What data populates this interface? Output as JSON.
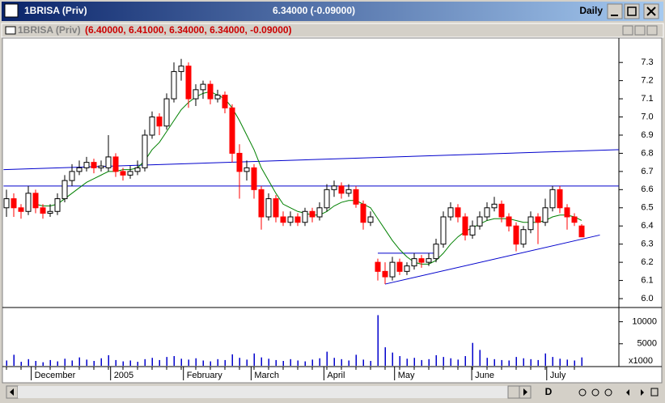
{
  "window": {
    "title": "1BRISA (Priv)",
    "quote": "6.34000 (-0.09000)",
    "period": "Daily"
  },
  "panel": {
    "name": "1BRISA (Priv)",
    "ohlc_text": "(6.40000, 6.41000, 6.34000, 6.34000, -0.09000)"
  },
  "toolbar": {
    "button": "D"
  },
  "chart_data": {
    "type": "candlestick",
    "ohlc": [
      [
        6.5,
        6.6,
        6.45,
        6.55
      ],
      [
        6.55,
        6.58,
        6.45,
        6.5
      ],
      [
        6.5,
        6.52,
        6.44,
        6.48
      ],
      [
        6.48,
        6.62,
        6.46,
        6.58
      ],
      [
        6.58,
        6.6,
        6.47,
        6.5
      ],
      [
        6.5,
        6.52,
        6.44,
        6.47
      ],
      [
        6.47,
        6.52,
        6.45,
        6.48
      ],
      [
        6.48,
        6.58,
        6.46,
        6.55
      ],
      [
        6.55,
        6.68,
        6.53,
        6.65
      ],
      [
        6.65,
        6.74,
        6.62,
        6.7
      ],
      [
        6.7,
        6.76,
        6.68,
        6.72
      ],
      [
        6.72,
        6.78,
        6.7,
        6.75
      ],
      [
        6.75,
        6.77,
        6.69,
        6.72
      ],
      [
        6.72,
        6.76,
        6.7,
        6.73
      ],
      [
        6.72,
        6.9,
        6.7,
        6.78
      ],
      [
        6.78,
        6.8,
        6.67,
        6.7
      ],
      [
        6.7,
        6.72,
        6.65,
        6.68
      ],
      [
        6.68,
        6.73,
        6.66,
        6.7
      ],
      [
        6.7,
        6.76,
        6.68,
        6.72
      ],
      [
        6.72,
        6.93,
        6.7,
        6.9
      ],
      [
        6.9,
        7.03,
        6.88,
        7.0
      ],
      [
        7.0,
        7.02,
        6.9,
        6.95
      ],
      [
        6.95,
        7.13,
        6.93,
        7.1
      ],
      [
        7.1,
        7.3,
        7.08,
        7.25
      ],
      [
        7.25,
        7.32,
        7.2,
        7.28
      ],
      [
        7.28,
        7.3,
        7.05,
        7.1
      ],
      [
        7.1,
        7.18,
        7.06,
        7.15
      ],
      [
        7.15,
        7.2,
        7.1,
        7.18
      ],
      [
        7.18,
        7.2,
        7.07,
        7.1
      ],
      [
        7.1,
        7.15,
        7.08,
        7.12
      ],
      [
        7.12,
        7.14,
        7.02,
        7.05
      ],
      [
        7.05,
        7.07,
        6.75,
        6.8
      ],
      [
        6.8,
        6.85,
        6.55,
        6.7
      ],
      [
        6.7,
        6.76,
        6.65,
        6.72
      ],
      [
        6.72,
        6.74,
        6.55,
        6.6
      ],
      [
        6.6,
        6.62,
        6.38,
        6.45
      ],
      [
        6.45,
        6.58,
        6.43,
        6.55
      ],
      [
        6.55,
        6.57,
        6.42,
        6.45
      ],
      [
        6.45,
        6.48,
        6.4,
        6.42
      ],
      [
        6.42,
        6.48,
        6.4,
        6.45
      ],
      [
        6.45,
        6.47,
        6.4,
        6.42
      ],
      [
        6.42,
        6.5,
        6.4,
        6.48
      ],
      [
        6.48,
        6.5,
        6.42,
        6.45
      ],
      [
        6.45,
        6.53,
        6.43,
        6.5
      ],
      [
        6.5,
        6.63,
        6.48,
        6.6
      ],
      [
        6.6,
        6.65,
        6.56,
        6.62
      ],
      [
        6.62,
        6.64,
        6.55,
        6.58
      ],
      [
        6.58,
        6.63,
        6.56,
        6.6
      ],
      [
        6.6,
        6.62,
        6.5,
        6.52
      ],
      [
        6.52,
        6.54,
        6.38,
        6.42
      ],
      [
        6.42,
        6.48,
        6.4,
        6.45
      ],
      [
        6.2,
        6.22,
        6.1,
        6.15
      ],
      [
        6.15,
        6.2,
        6.08,
        6.12
      ],
      [
        6.12,
        6.23,
        6.1,
        6.2
      ],
      [
        6.2,
        6.22,
        6.13,
        6.15
      ],
      [
        6.15,
        6.2,
        6.13,
        6.18
      ],
      [
        6.18,
        6.25,
        6.16,
        6.22
      ],
      [
        6.22,
        6.24,
        6.17,
        6.2
      ],
      [
        6.2,
        6.25,
        6.18,
        6.22
      ],
      [
        6.22,
        6.33,
        6.2,
        6.3
      ],
      [
        6.3,
        6.48,
        6.28,
        6.45
      ],
      [
        6.45,
        6.53,
        6.43,
        6.5
      ],
      [
        6.5,
        6.52,
        6.42,
        6.45
      ],
      [
        6.45,
        6.47,
        6.32,
        6.35
      ],
      [
        6.35,
        6.43,
        6.33,
        6.4
      ],
      [
        6.4,
        6.48,
        6.38,
        6.45
      ],
      [
        6.45,
        6.53,
        6.43,
        6.5
      ],
      [
        6.5,
        6.56,
        6.48,
        6.52
      ],
      [
        6.52,
        6.54,
        6.42,
        6.45
      ],
      [
        6.45,
        6.47,
        6.37,
        6.4
      ],
      [
        6.4,
        6.42,
        6.26,
        6.3
      ],
      [
        6.3,
        6.4,
        6.28,
        6.38
      ],
      [
        6.38,
        6.48,
        6.36,
        6.45
      ],
      [
        6.45,
        6.47,
        6.3,
        6.42
      ],
      [
        6.42,
        6.55,
        6.4,
        6.5
      ],
      [
        6.5,
        6.62,
        6.48,
        6.6
      ],
      [
        6.6,
        6.62,
        6.47,
        6.5
      ],
      [
        6.5,
        6.52,
        6.38,
        6.45
      ],
      [
        6.45,
        6.47,
        6.4,
        6.42
      ],
      [
        6.4,
        6.41,
        6.34,
        6.34
      ]
    ],
    "up_color": "#ffffff",
    "down_color": "#ff0000",
    "moving_average": {
      "color": "#008000",
      "values": [
        null,
        null,
        null,
        null,
        6.52,
        6.51,
        6.51,
        6.52,
        6.55,
        6.58,
        6.61,
        6.64,
        6.66,
        6.68,
        6.7,
        6.7,
        6.71,
        6.71,
        6.72,
        6.76,
        6.82,
        6.86,
        6.92,
        6.98,
        7.04,
        7.08,
        7.11,
        7.13,
        7.14,
        7.12,
        7.1,
        7.05,
        6.98,
        6.9,
        6.82,
        6.72,
        6.65,
        6.58,
        6.52,
        6.5,
        6.48,
        6.47,
        6.46,
        6.46,
        6.48,
        6.51,
        6.53,
        6.54,
        6.54,
        6.52,
        6.5,
        6.44,
        6.38,
        6.32,
        6.27,
        6.23,
        6.2,
        6.19,
        6.19,
        6.21,
        6.25,
        6.3,
        6.34,
        6.37,
        6.39,
        6.41,
        6.43,
        6.44,
        6.44,
        6.44,
        6.43,
        6.42,
        6.42,
        6.42,
        6.43,
        6.45,
        6.46,
        6.46,
        6.45,
        6.43
      ]
    },
    "trendlines": [
      {
        "color": "#0000cc",
        "x": [
          -0.4,
          84.1
        ],
        "y": [
          6.71,
          6.82
        ]
      },
      {
        "color": "#0000cc",
        "x": [
          -0.4,
          84.1
        ],
        "y": [
          6.62,
          6.62
        ]
      },
      {
        "color": "#0000cc",
        "x": [
          52,
          81.5
        ],
        "y": [
          6.08,
          6.35
        ]
      },
      {
        "color": "#0000cc",
        "x": [
          51,
          59
        ],
        "y": [
          6.25,
          6.25
        ]
      }
    ],
    "ylim": [
      5.96,
      7.43
    ],
    "yticks": [
      {
        "value": 6,
        "label": "6.0"
      },
      6.1,
      6.2,
      6.3,
      6.4,
      6.5,
      6.6,
      6.7,
      6.8,
      6.9,
      {
        "value": 7,
        "label": "7.0"
      },
      7.1,
      7.2,
      7.3
    ],
    "xticks": [
      {
        "value": 3.4,
        "label": "December"
      },
      {
        "value": 14.3,
        "label": "2005"
      },
      {
        "value": 24.3,
        "label": "February"
      },
      {
        "value": 33.6,
        "label": "March"
      },
      {
        "value": 43.6,
        "label": "April"
      },
      {
        "value": 53.3,
        "label": "May"
      },
      {
        "value": 63.9,
        "label": "June"
      },
      {
        "value": 74.2,
        "label": "July"
      }
    ],
    "volume": {
      "color": "#0000cc",
      "unit_label": "x1000",
      "ylim": [
        0,
        12500
      ],
      "yticks": [
        5000,
        10000
      ],
      "values": [
        1200,
        2500,
        900,
        1500,
        1100,
        800,
        1300,
        1000,
        1600,
        1200,
        1900,
        1400,
        1100,
        1700,
        2400,
        1300,
        1000,
        1200,
        900,
        1500,
        1800,
        1300,
        2000,
        2200,
        1600,
        1400,
        1700,
        1200,
        1000,
        1500,
        1300,
        2600,
        1800,
        1400,
        2800,
        1900,
        1600,
        1300,
        1100,
        1500,
        1200,
        1000,
        1400,
        1700,
        3200,
        1800,
        1500,
        1200,
        2500,
        1400,
        1100,
        11500,
        4200,
        3000,
        2200,
        1600,
        1800,
        1300,
        1500,
        2400,
        2000,
        1700,
        1400,
        2200,
        5200,
        3600,
        1800,
        1500,
        1300,
        1200,
        2000,
        1700,
        1500,
        1300,
        2800,
        2000,
        1600,
        1400,
        1200,
        1900
      ]
    }
  }
}
